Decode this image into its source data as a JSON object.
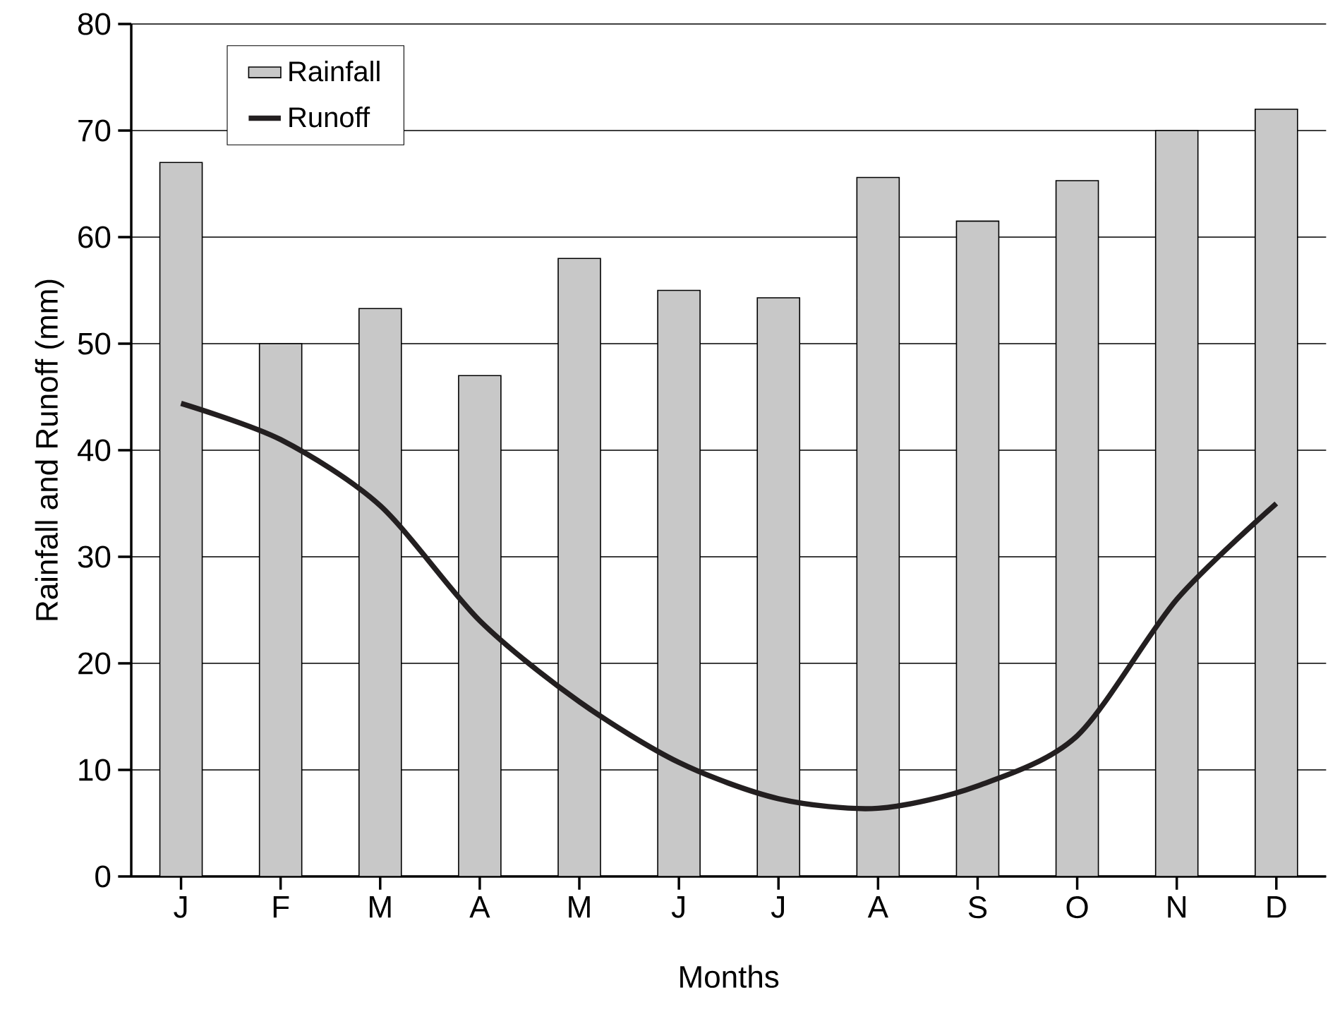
{
  "chart_data": {
    "type": "bar",
    "xlabel": "Months",
    "ylabel": "Rainfall and Runoff (mm)",
    "categories": [
      "J",
      "F",
      "M",
      "A",
      "M",
      "J",
      "J",
      "A",
      "S",
      "O",
      "N",
      "D"
    ],
    "series": [
      {
        "name": "Rainfall",
        "color": "#c8c8c8",
        "values": [
          67,
          50,
          53.3,
          47,
          58,
          55,
          54.3,
          65.6,
          61.5,
          65.3,
          70,
          72
        ]
      },
      {
        "name": "Runoff",
        "type": "line",
        "color": "#231f20",
        "values": [
          44.4,
          41,
          34.8,
          24,
          16.4,
          10.7,
          7.3,
          6.4,
          8.5,
          13.2,
          26,
          35
        ]
      }
    ],
    "ylim": [
      0,
      80
    ],
    "yticks": [
      0,
      10,
      20,
      30,
      40,
      50,
      60,
      70,
      80
    ],
    "grid": "y",
    "legend": "top left"
  }
}
